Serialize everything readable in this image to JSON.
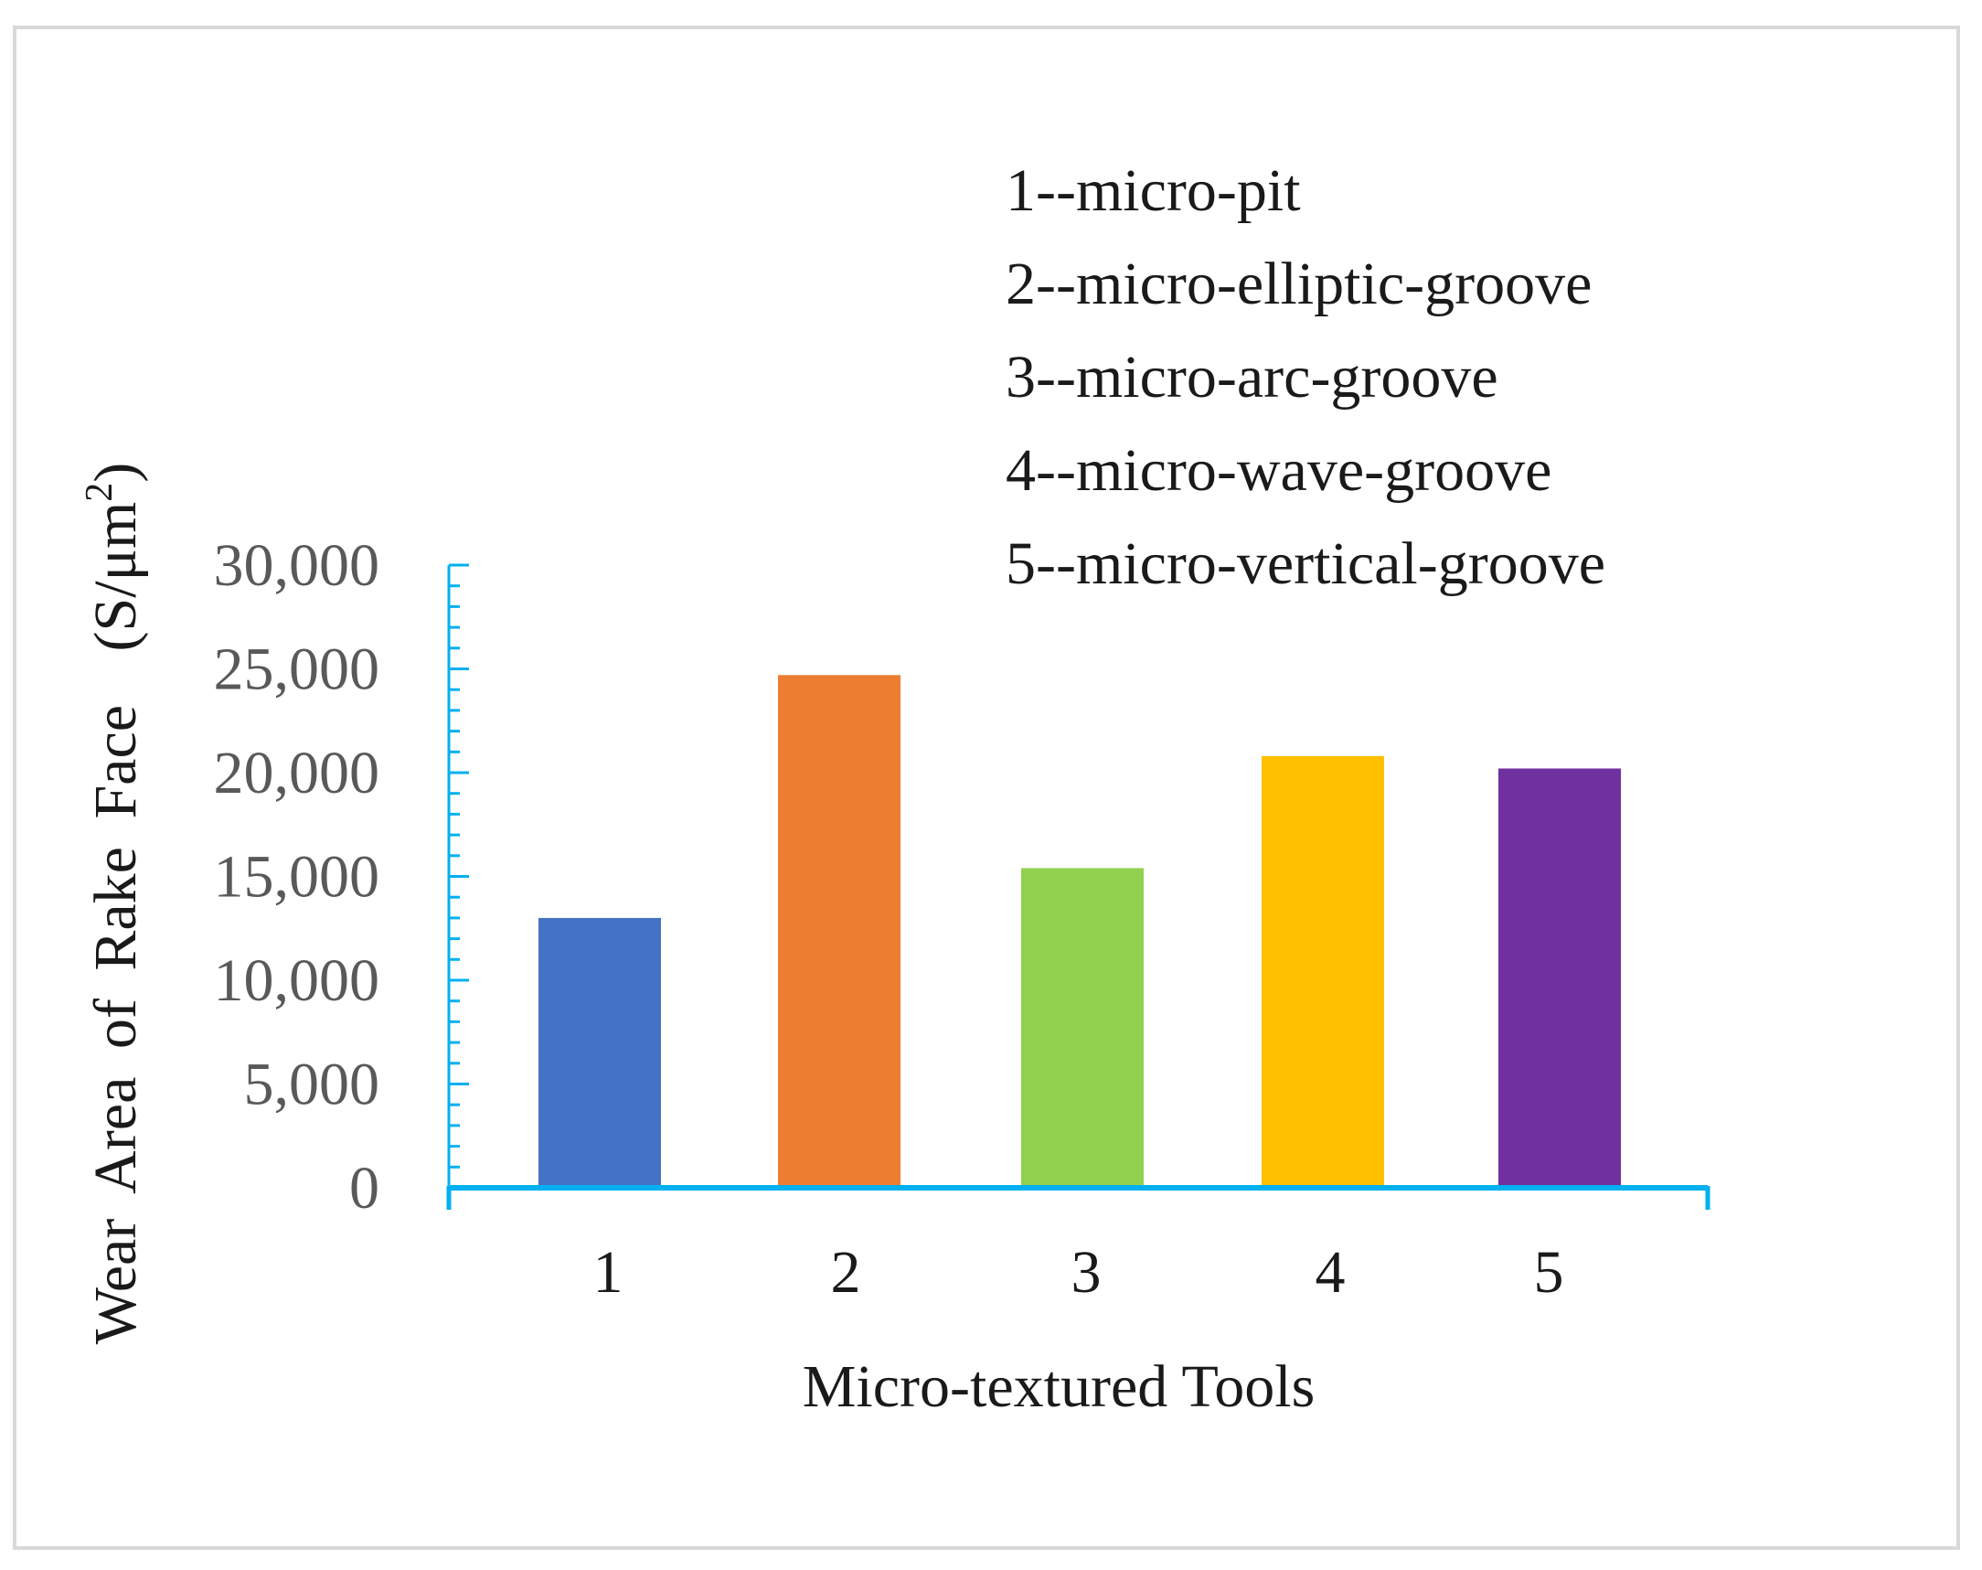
{
  "chart_data": {
    "type": "bar",
    "title": "",
    "xlabel": "Micro-textured Tools",
    "ylabel_main": "Wear Area of Rake Face",
    "ylabel_unit_prefix": "(S/μm",
    "ylabel_unit_sup": "2",
    "ylabel_unit_suffix": ")",
    "categories": [
      "1",
      "2",
      "3",
      "4",
      "5"
    ],
    "values": [
      13000,
      24700,
      15400,
      20800,
      20200
    ],
    "colors": [
      "#4472c4",
      "#ed7d31",
      "#92d050",
      "#ffc000",
      "#7030a0"
    ],
    "ylim": [
      0,
      30000
    ],
    "yticks": [
      0,
      5000,
      10000,
      15000,
      20000,
      25000,
      30000
    ],
    "ytick_labels": [
      "0",
      "5,000",
      "10,000",
      "15,000",
      "20,000",
      "25,000",
      "30,000"
    ],
    "axis_color": "#00b0f0",
    "grid": false,
    "legend_placement": "top-right",
    "legend": [
      "1--micro-pit",
      "2--micro-elliptic-groove",
      "3--micro-arc-groove",
      "4--micro-wave-groove",
      "5--micro-vertical-groove"
    ]
  }
}
